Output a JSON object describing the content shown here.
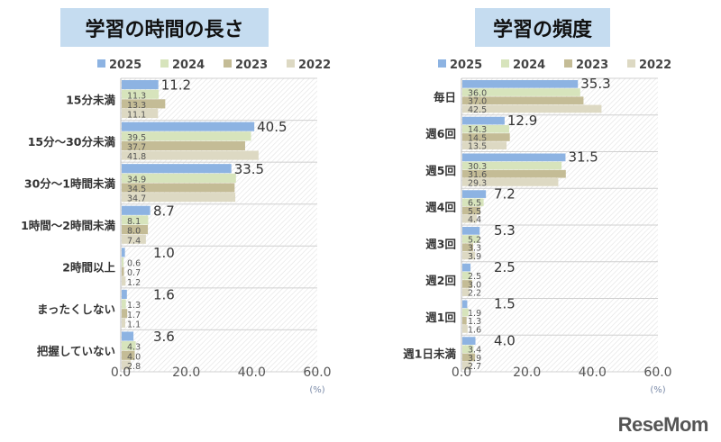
{
  "colors": {
    "2025": "#8db3e2",
    "2024": "#d7e4bc",
    "2023": "#c4bc96",
    "2022": "#ddd9c3"
  },
  "logo": "ReseMom",
  "chart_data": [
    {
      "type": "bar",
      "orientation": "horizontal",
      "title": "学習の時間の長さ",
      "unit": "(%)",
      "xlim": [
        0,
        60
      ],
      "ticks": [
        "0.0",
        "20.0",
        "40.0",
        "60.0"
      ],
      "legend": "top",
      "categories": [
        "15分未満",
        "15分〜30分未満",
        "30分〜1時間未満",
        "1時間〜2時間未満",
        "2時間以上",
        "まったくしない",
        "把握していない"
      ],
      "series": [
        {
          "name": "2025",
          "values": [
            11.2,
            40.5,
            33.5,
            8.7,
            1.0,
            1.6,
            3.6
          ]
        },
        {
          "name": "2024",
          "values": [
            11.3,
            39.5,
            34.9,
            8.1,
            0.6,
            1.3,
            4.3
          ]
        },
        {
          "name": "2023",
          "values": [
            13.3,
            37.7,
            34.5,
            8.0,
            0.7,
            1.7,
            4.0
          ]
        },
        {
          "name": "2022",
          "values": [
            11.1,
            41.8,
            34.7,
            7.4,
            1.2,
            1.1,
            2.8
          ]
        }
      ]
    },
    {
      "type": "bar",
      "orientation": "horizontal",
      "title": "学習の頻度",
      "unit": "(%)",
      "xlim": [
        0,
        60
      ],
      "ticks": [
        "0.0",
        "20.0",
        "40.0",
        "60.0"
      ],
      "legend": "top",
      "categories": [
        "毎日",
        "週6回",
        "週5回",
        "週4回",
        "週3回",
        "週2回",
        "週1回",
        "週1日未満"
      ],
      "series": [
        {
          "name": "2025",
          "values": [
            35.3,
            12.9,
            31.5,
            7.2,
            5.3,
            2.5,
            1.5,
            4.0
          ]
        },
        {
          "name": "2024",
          "values": [
            36.0,
            14.3,
            30.3,
            6.5,
            5.2,
            2.5,
            1.9,
            3.4
          ]
        },
        {
          "name": "2023",
          "values": [
            37.0,
            14.5,
            31.6,
            5.5,
            3.3,
            3.0,
            1.3,
            3.9
          ]
        },
        {
          "name": "2022",
          "values": [
            42.5,
            13.5,
            29.3,
            4.4,
            3.9,
            2.2,
            1.6,
            2.7
          ]
        }
      ]
    }
  ]
}
